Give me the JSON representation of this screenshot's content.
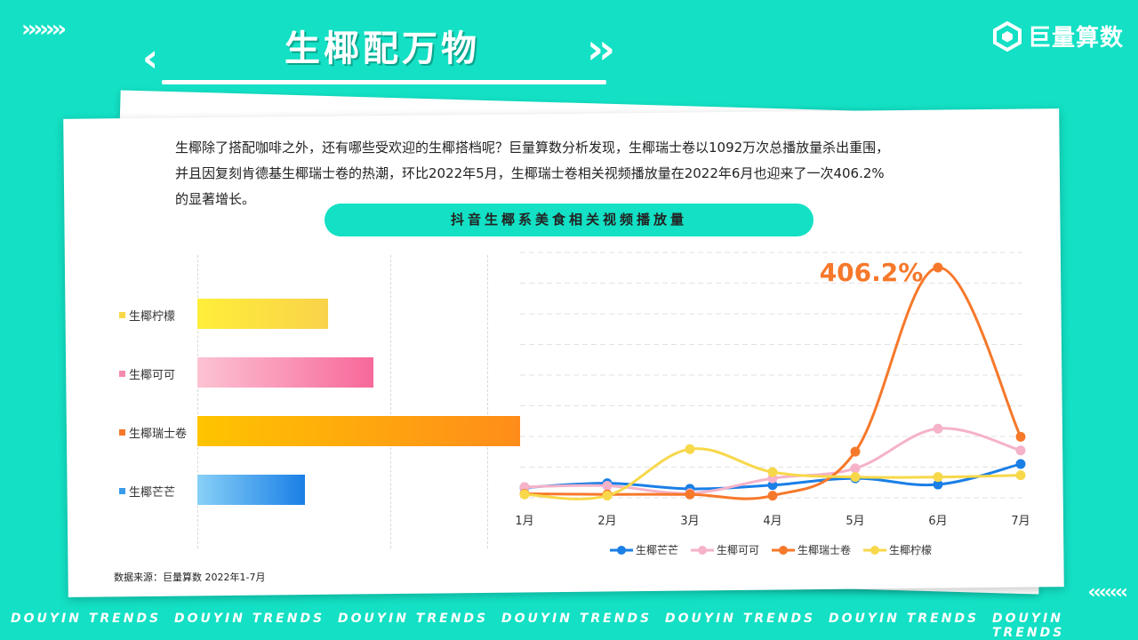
{
  "header": {
    "title": "生椰配万物",
    "logo_text": "巨量算数"
  },
  "intro": {
    "line1": "生椰除了搭配咖啡之外，还有哪些受欢迎的生椰搭档呢？巨量算数分析发现，生椰瑞士卷以1092万次总播放量杀出重围，",
    "line2": "并且因复刻肯德基生椰瑞士卷的热潮，环比2022年5月，生椰瑞士卷相关视频播放量在2022年6月也迎来了一次406.2%",
    "line3": "的显著增长。"
  },
  "chart_title": "抖音生椰系美食相关视频播放量",
  "source": "数据来源：巨量算数 2022年1-7月",
  "footer_text": "DOUYIN TRENDS",
  "colors": {
    "background": "#13e0c4",
    "mango": "#1a7fe6",
    "cocoa": "#f5b2c8",
    "swiss": "#f6782a",
    "lemon": "#f7d84a"
  },
  "chart_data": [
    {
      "type": "bar",
      "orientation": "horizontal",
      "categories": [
        "生椰柠檬",
        "生椰可可",
        "生椰瑞士卷",
        "生椰芒芒"
      ],
      "values": [
        442,
        596,
        1092,
        363
      ],
      "xlim": [
        0,
        1092
      ],
      "grid": true
    },
    {
      "type": "line",
      "x": [
        "1月",
        "2月",
        "3月",
        "4月",
        "5月",
        "6月",
        "7月"
      ],
      "series": [
        {
          "name": "生椰芒芒",
          "values": [
            1.5,
            2.2,
            1.3,
            1.9,
            3.0,
            2.0,
            5.3
          ]
        },
        {
          "name": "生椰可可",
          "values": [
            1.6,
            1.8,
            0.6,
            3.0,
            4.6,
            11.0,
            7.5
          ]
        },
        {
          "name": "生椰瑞士卷",
          "values": [
            0.5,
            0.4,
            0.4,
            0.2,
            7.3,
            37.0,
            9.7
          ]
        },
        {
          "name": "生椰柠檬",
          "values": [
            0.4,
            0.2,
            7.7,
            4.0,
            3.2,
            3.2,
            3.5
          ]
        }
      ],
      "annotation": "406.2%",
      "ylim": [
        0,
        40
      ],
      "grid": true,
      "legend": "bottom"
    }
  ]
}
